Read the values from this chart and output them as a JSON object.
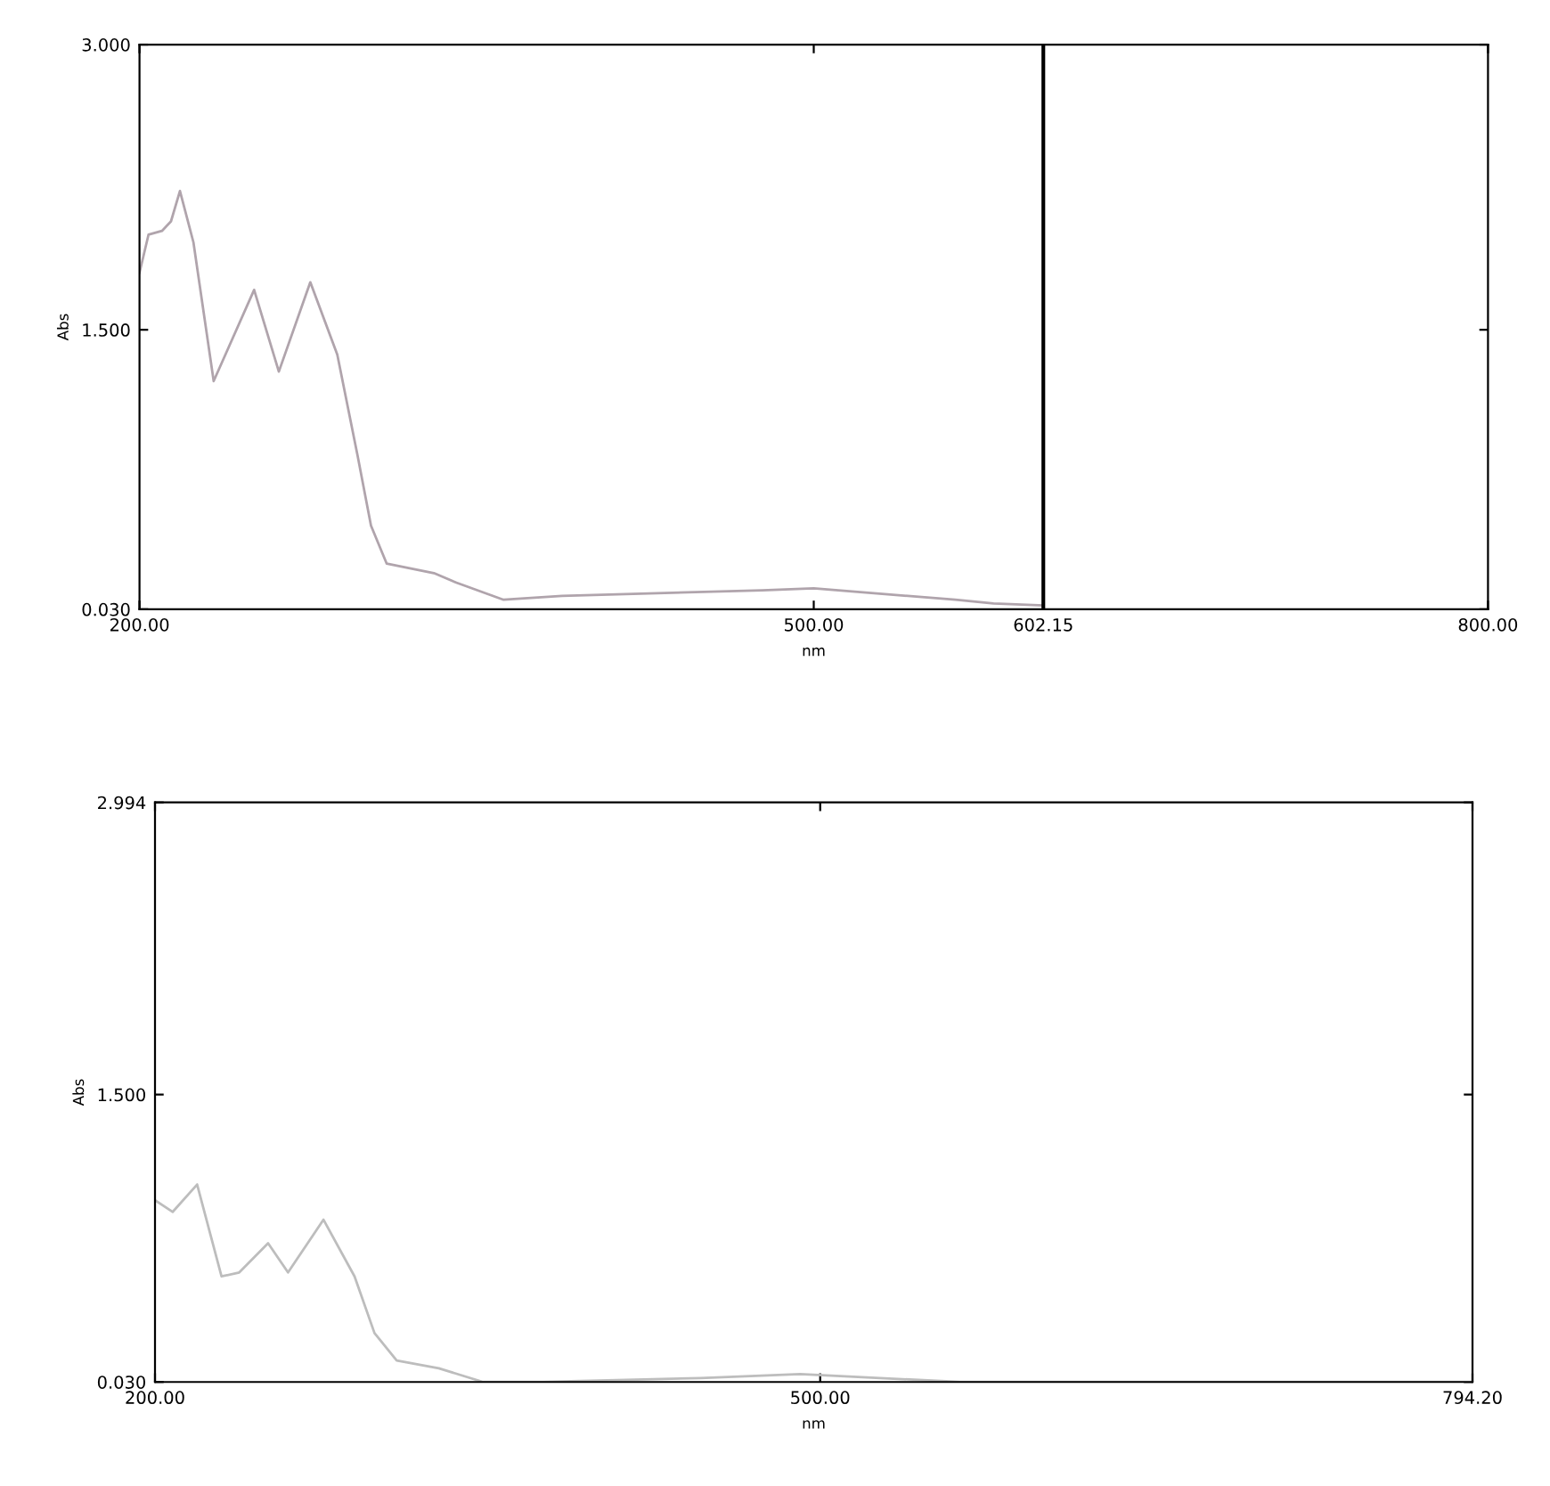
{
  "chart_data": [
    {
      "type": "line",
      "xlabel": "nm",
      "ylabel": "Abs",
      "series": [
        {
          "color": "#b0a4ac",
          "x": [
            200,
            204,
            210,
            214,
            218,
            224,
            233,
            251,
            262,
            276,
            288,
            297,
            303,
            310,
            331,
            341,
            362,
            388,
            477,
            500,
            563,
            580,
            602
          ],
          "values": [
            1.8,
            2.0,
            2.02,
            2.07,
            2.23,
            1.96,
            1.23,
            1.71,
            1.28,
            1.75,
            1.37,
            0.84,
            0.47,
            0.27,
            0.22,
            0.17,
            0.08,
            0.1,
            0.13,
            0.14,
            0.08,
            0.06,
            0.05
          ]
        }
      ],
      "xlim": [
        200,
        800
      ],
      "ylim": [
        0.03,
        3.0
      ],
      "xticks": [
        {
          "value": 200,
          "label": "200.00"
        },
        {
          "value": 500,
          "label": "500.00"
        },
        {
          "value": 602.15,
          "label": "602.15"
        },
        {
          "value": 800,
          "label": "800.00"
        }
      ],
      "yticks": [
        {
          "value": 0.03,
          "label": "0.030"
        },
        {
          "value": 1.5,
          "label": "1.500"
        },
        {
          "value": 3.0,
          "label": "3.000"
        }
      ],
      "ref_lines": [
        {
          "axis": "x",
          "value": 602.15,
          "color": "#000000"
        }
      ],
      "grid": false,
      "marker": "none",
      "line_style": "solid"
    },
    {
      "type": "line",
      "xlabel": "nm",
      "ylabel": "Abs",
      "series": [
        {
          "color": "#bdbdbd",
          "x": [
            200,
            208,
            219,
            230,
            238,
            251,
            260,
            276,
            290,
            299,
            309,
            328,
            348,
            375,
            446,
            491,
            563,
            650,
            794.2
          ],
          "values": [
            0.96,
            0.9,
            1.04,
            0.57,
            0.59,
            0.74,
            0.59,
            0.86,
            0.57,
            0.28,
            0.14,
            0.1,
            0.03,
            0.03,
            0.05,
            0.07,
            0.03,
            0.03,
            0.03
          ]
        }
      ],
      "xlim": [
        200,
        794.2
      ],
      "ylim": [
        0.03,
        2.994
      ],
      "xticks": [
        {
          "value": 200,
          "label": "200.00"
        },
        {
          "value": 500,
          "label": "500.00"
        },
        {
          "value": 794.2,
          "label": "794.20"
        }
      ],
      "yticks": [
        {
          "value": 0.03,
          "label": "0.030"
        },
        {
          "value": 1.5,
          "label": "1.500"
        },
        {
          "value": 2.994,
          "label": "2.994"
        }
      ],
      "grid": false,
      "marker": "none",
      "line_style": "solid"
    }
  ]
}
